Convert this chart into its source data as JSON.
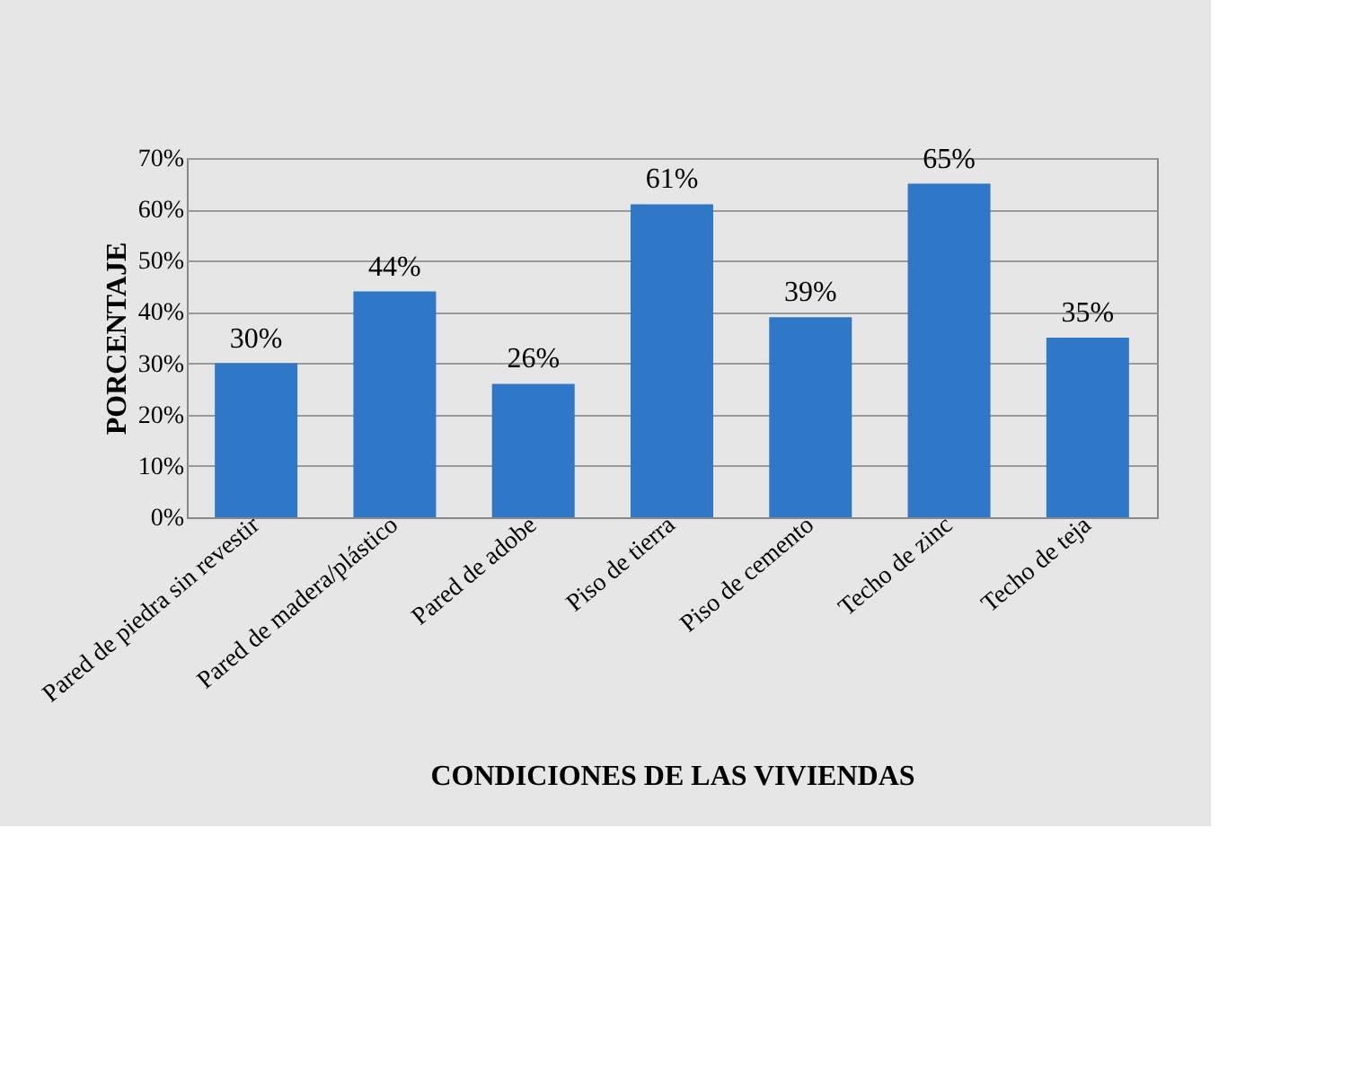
{
  "chart_data": {
    "type": "bar",
    "xlabel": "CONDICIONES DE LAS VIVIENDAS",
    "ylabel": "PORCENTAJE",
    "categories": [
      "Pared de piedra sin revestir",
      "Pared de madera/plástico",
      "Pared de adobe",
      "Piso de tierra",
      "Piso de cemento",
      "Techo de zinc",
      "Techo de teja"
    ],
    "values": [
      30,
      44,
      26,
      61,
      39,
      65,
      35
    ],
    "value_labels": [
      "30%",
      "44%",
      "26%",
      "61%",
      "39%",
      "65%",
      "35%"
    ],
    "color": "#2f78c8",
    "ylim": [
      0,
      70
    ],
    "yticks": [
      {
        "value": 0,
        "label": "0%"
      },
      {
        "value": 10,
        "label": "10%"
      },
      {
        "value": 20,
        "label": "20%"
      },
      {
        "value": 30,
        "label": "30%"
      },
      {
        "value": 40,
        "label": "40%"
      },
      {
        "value": 50,
        "label": "50%"
      },
      {
        "value": 60,
        "label": "60%"
      },
      {
        "value": 70,
        "label": "70%"
      }
    ],
    "grid": "y"
  }
}
